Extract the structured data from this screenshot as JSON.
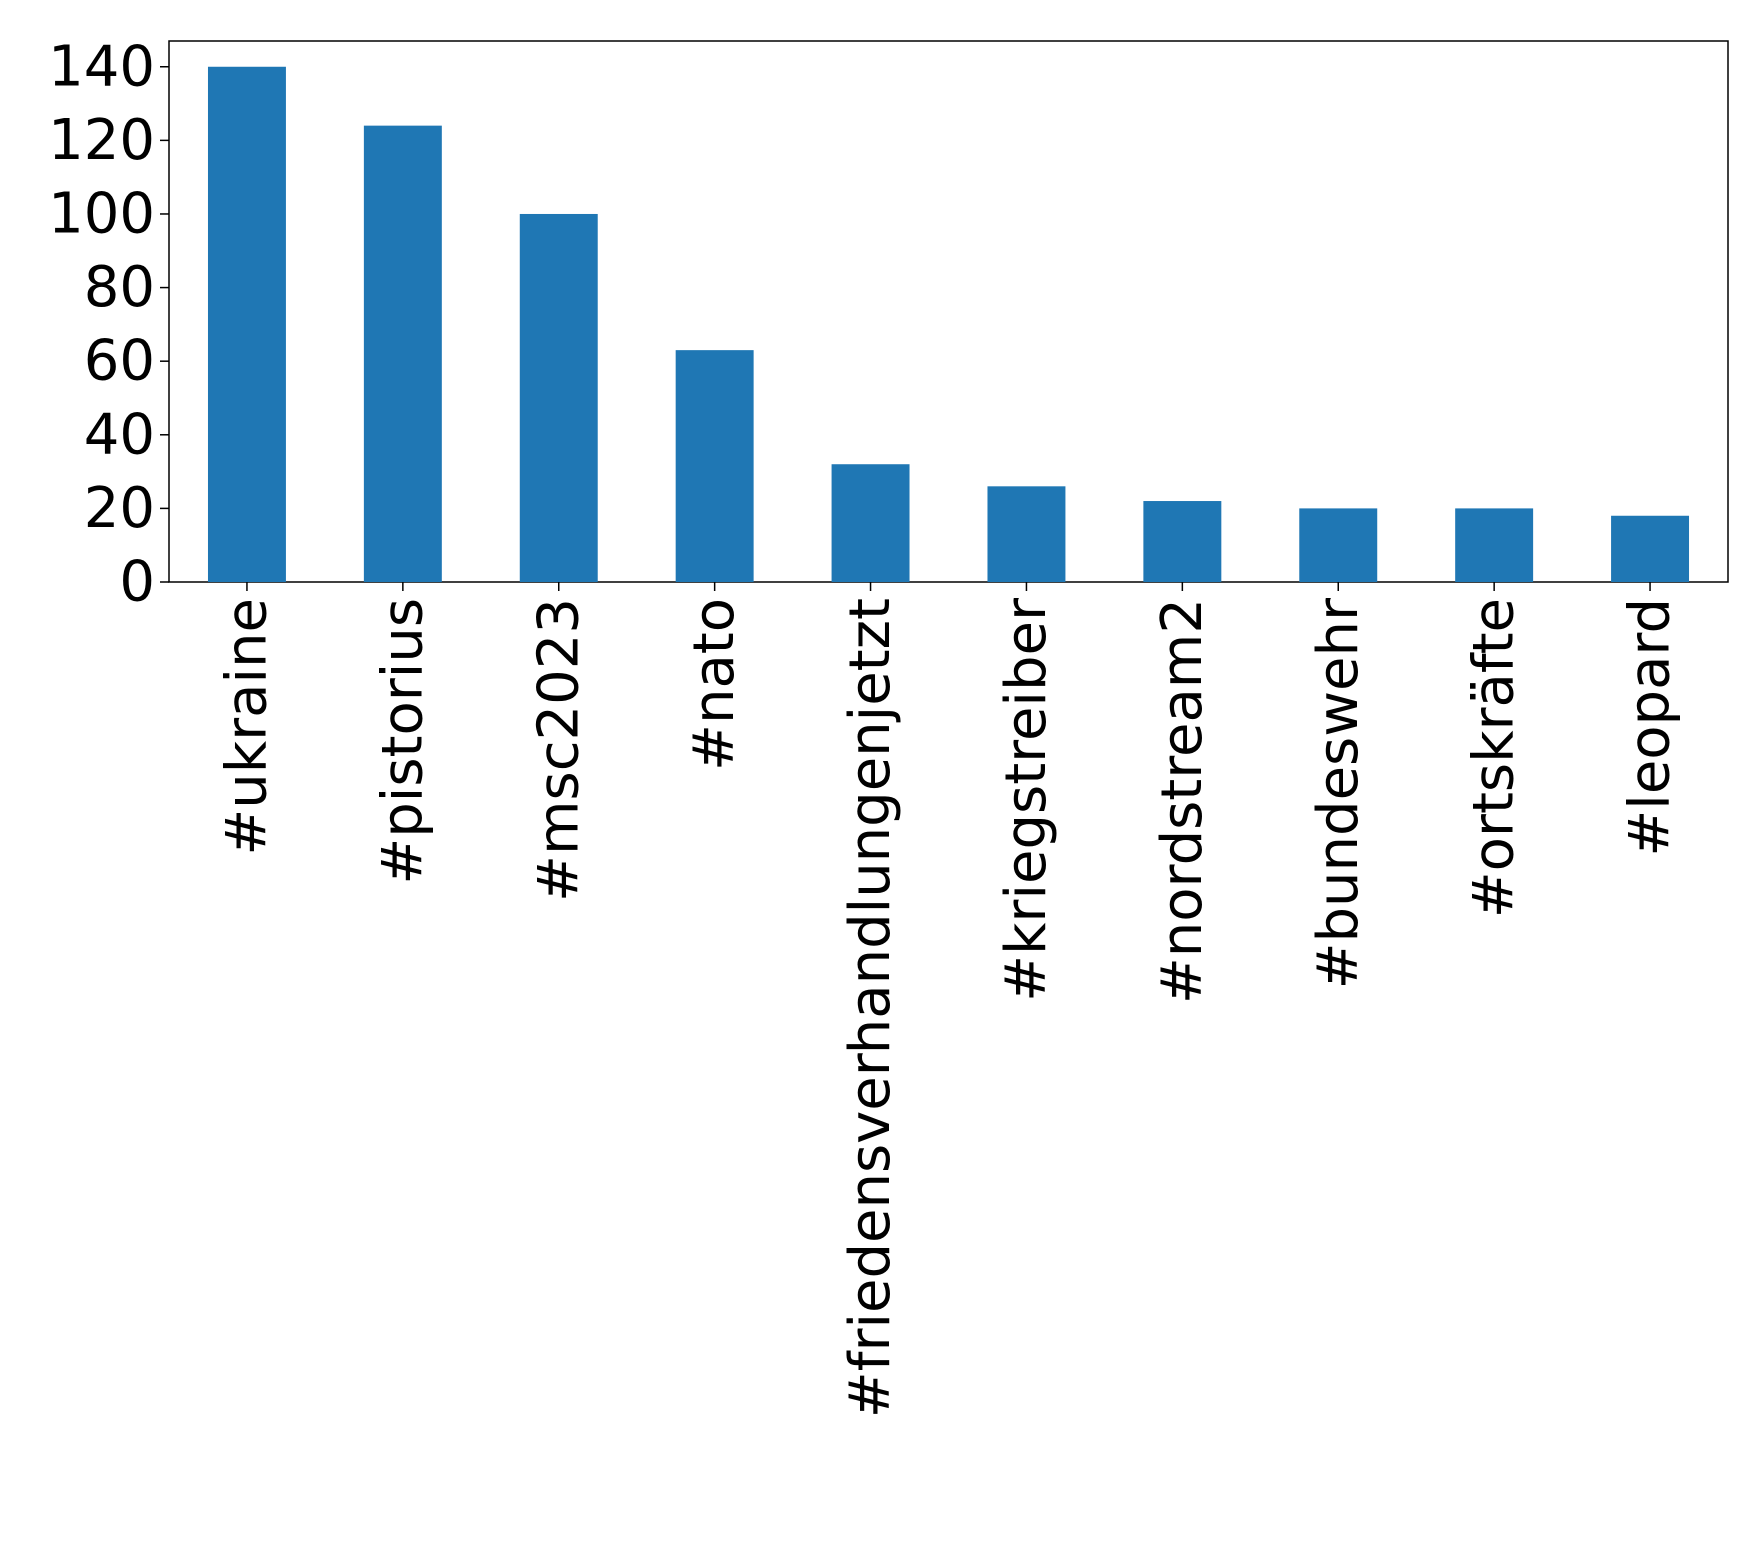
{
  "chart_data": {
    "type": "bar",
    "categories": [
      "#ukraine",
      "#pistorius",
      "#msc2023",
      "#nato",
      "#friedensverhandlungenjetzt",
      "#kriegstreiber",
      "#nordstream2",
      "#bundeswehr",
      "#ortskräfte",
      "#leopard"
    ],
    "values": [
      140,
      124,
      100,
      63,
      32,
      26,
      22,
      20,
      20,
      18
    ],
    "color": "#1f77b4",
    "ylim": [
      0,
      147
    ],
    "yticks": [
      0,
      20,
      40,
      60,
      80,
      100,
      120,
      140
    ],
    "grid": false
  }
}
